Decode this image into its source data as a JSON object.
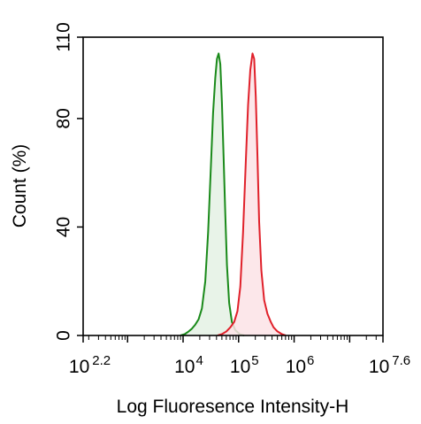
{
  "chart_data": {
    "type": "area",
    "title": "",
    "xlabel": "Log Fluoresence Intensity-H",
    "ylabel": "Count  (%)",
    "x_scale": "log10",
    "xlim_log10": [
      2.2,
      7.6
    ],
    "ylim": [
      0,
      110
    ],
    "x_ticks": [
      {
        "base": "10",
        "exp": "2.2",
        "log10": 2.2
      },
      {
        "base": "10",
        "exp": "4",
        "log10": 4
      },
      {
        "base": "10",
        "exp": "5",
        "log10": 5
      },
      {
        "base": "10",
        "exp": "6",
        "log10": 6
      },
      {
        "base": "10",
        "exp": "7.6",
        "log10": 7.6
      }
    ],
    "y_ticks": [
      0,
      40,
      80,
      110
    ],
    "grid": false,
    "legend": "none",
    "series": [
      {
        "color": "#1a8a1a",
        "fill": "#e4f1e4",
        "points": [
          [
            3.95,
            0
          ],
          [
            4.03,
            0.5
          ],
          [
            4.1,
            1.5
          ],
          [
            4.16,
            2.5
          ],
          [
            4.22,
            4
          ],
          [
            4.28,
            6
          ],
          [
            4.34,
            10
          ],
          [
            4.4,
            20
          ],
          [
            4.45,
            38
          ],
          [
            4.5,
            62
          ],
          [
            4.54,
            82
          ],
          [
            4.58,
            95
          ],
          [
            4.61,
            102
          ],
          [
            4.64,
            104
          ],
          [
            4.67,
            100
          ],
          [
            4.7,
            86
          ],
          [
            4.73,
            66
          ],
          [
            4.76,
            45
          ],
          [
            4.79,
            26
          ],
          [
            4.83,
            12
          ],
          [
            4.88,
            5
          ],
          [
            4.94,
            2
          ],
          [
            5.02,
            0.5
          ],
          [
            5.1,
            0
          ]
        ]
      },
      {
        "color": "#e0202a",
        "fill": "#fbe3e6",
        "points": [
          [
            4.62,
            0
          ],
          [
            4.7,
            0.5
          ],
          [
            4.78,
            1.5
          ],
          [
            4.85,
            3
          ],
          [
            4.92,
            5
          ],
          [
            4.98,
            9
          ],
          [
            5.03,
            18
          ],
          [
            5.08,
            38
          ],
          [
            5.13,
            64
          ],
          [
            5.17,
            85
          ],
          [
            5.21,
            98
          ],
          [
            5.25,
            104
          ],
          [
            5.28,
            102
          ],
          [
            5.31,
            88
          ],
          [
            5.34,
            66
          ],
          [
            5.37,
            42
          ],
          [
            5.41,
            24
          ],
          [
            5.46,
            13
          ],
          [
            5.52,
            8
          ],
          [
            5.58,
            5
          ],
          [
            5.63,
            3
          ],
          [
            5.7,
            1.5
          ],
          [
            5.78,
            0.5
          ],
          [
            5.85,
            0
          ]
        ]
      }
    ]
  }
}
